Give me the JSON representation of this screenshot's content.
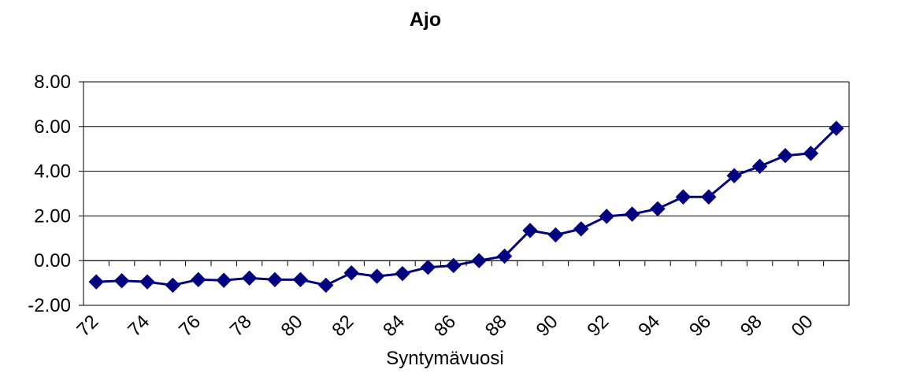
{
  "chart_data": {
    "type": "line",
    "title": "Ajo",
    "xlabel": "Syntymävuosi",
    "ylabel": "",
    "ylim": [
      -2,
      8
    ],
    "yticks": [
      -2,
      0,
      2,
      4,
      6,
      8
    ],
    "ytick_labels": [
      "-2.00",
      "0.00",
      "2.00",
      "4.00",
      "6.00",
      "8.00"
    ],
    "grid": true,
    "categories": [
      "72",
      "73",
      "74",
      "75",
      "76",
      "77",
      "78",
      "79",
      "80",
      "81",
      "82",
      "83",
      "84",
      "85",
      "86",
      "87",
      "88",
      "89",
      "90",
      "91",
      "92",
      "93",
      "94",
      "95",
      "96",
      "97",
      "98",
      "99",
      "00",
      "01"
    ],
    "xtick_labels": [
      "72",
      "74",
      "76",
      "78",
      "80",
      "82",
      "84",
      "86",
      "88",
      "90",
      "92",
      "94",
      "96",
      "98",
      "00"
    ],
    "series": [
      {
        "color": "#000080",
        "marker": "diamond",
        "values": [
          -0.95,
          -0.9,
          -0.95,
          -1.1,
          -0.85,
          -0.88,
          -0.78,
          -0.85,
          -0.85,
          -1.1,
          -0.55,
          -0.7,
          -0.58,
          -0.3,
          -0.22,
          0.0,
          0.2,
          1.35,
          1.15,
          1.42,
          1.98,
          2.08,
          2.32,
          2.85,
          2.85,
          3.8,
          4.22,
          4.7,
          4.8,
          5.92
        ]
      }
    ]
  }
}
